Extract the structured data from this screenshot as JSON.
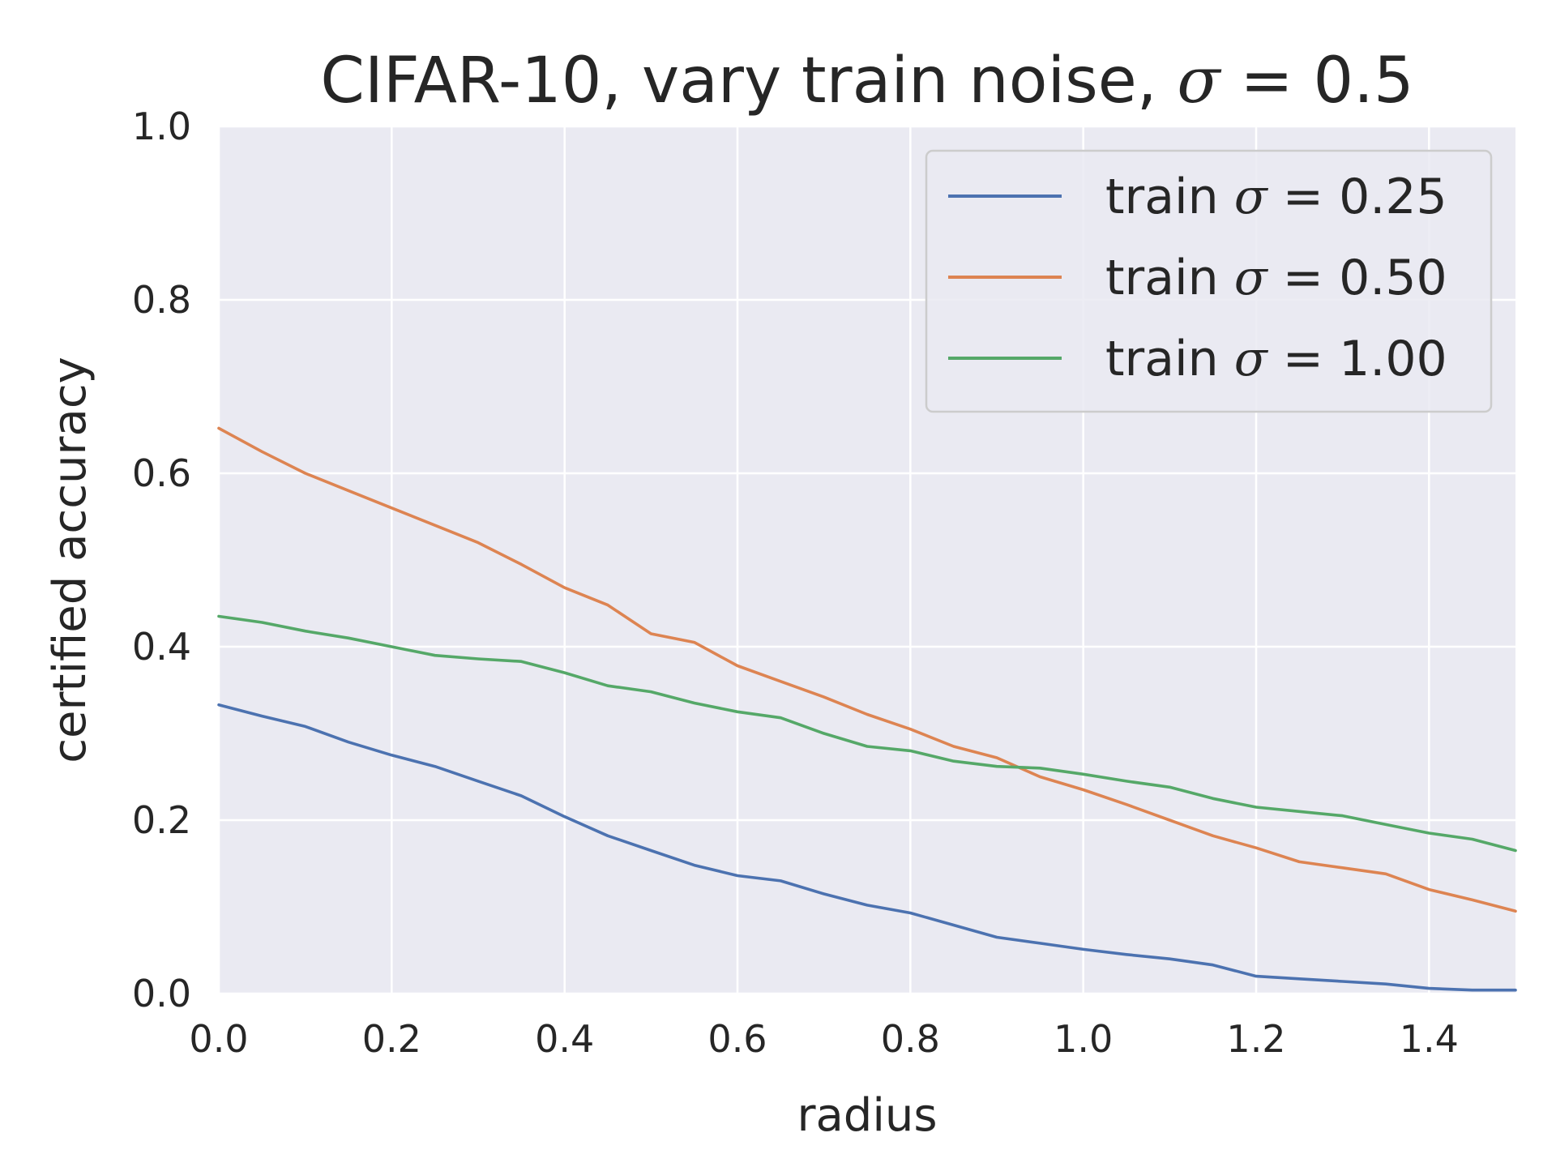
{
  "chart_data": {
    "type": "line",
    "title": {
      "prefix": "CIFAR-10, vary train noise, ",
      "symbol": "σ",
      "suffix": " = 0.5"
    },
    "xlabel": "radius",
    "ylabel": "certified accuracy",
    "xlim": [
      0,
      1.5
    ],
    "ylim": [
      0,
      1.0
    ],
    "xticks": [
      "0.0",
      "0.2",
      "0.4",
      "0.6",
      "0.8",
      "1.0",
      "1.2",
      "1.4"
    ],
    "yticks": [
      "0.0",
      "0.2",
      "0.4",
      "0.6",
      "0.8",
      "1.0"
    ],
    "grid": true,
    "legend_position": "top-right",
    "background": "#eaeaf2",
    "series": [
      {
        "name": "train σ = 0.25",
        "legend_prefix": "train ",
        "legend_symbol": "σ",
        "legend_value": " = 0.25",
        "color": "#4c72b0",
        "x": [
          0.0,
          0.05,
          0.1,
          0.15,
          0.2,
          0.25,
          0.3,
          0.35,
          0.4,
          0.45,
          0.5,
          0.55,
          0.6,
          0.65,
          0.7,
          0.75,
          0.8,
          0.85,
          0.9,
          0.95,
          1.0,
          1.05,
          1.1,
          1.15,
          1.2,
          1.25,
          1.3,
          1.35,
          1.4,
          1.45,
          1.5
        ],
        "y": [
          0.333,
          0.32,
          0.308,
          0.29,
          0.275,
          0.262,
          0.245,
          0.228,
          0.204,
          0.182,
          0.165,
          0.148,
          0.136,
          0.13,
          0.115,
          0.102,
          0.093,
          0.079,
          0.065,
          0.058,
          0.051,
          0.045,
          0.04,
          0.033,
          0.02,
          0.017,
          0.014,
          0.011,
          0.006,
          0.004,
          0.004
        ]
      },
      {
        "name": "train σ = 0.50",
        "legend_prefix": "train ",
        "legend_symbol": "σ",
        "legend_value": " = 0.50",
        "color": "#dd8452",
        "x": [
          0.0,
          0.05,
          0.1,
          0.15,
          0.2,
          0.25,
          0.3,
          0.35,
          0.4,
          0.45,
          0.5,
          0.55,
          0.6,
          0.65,
          0.7,
          0.75,
          0.8,
          0.85,
          0.9,
          0.95,
          1.0,
          1.05,
          1.1,
          1.15,
          1.2,
          1.25,
          1.3,
          1.35,
          1.4,
          1.45,
          1.5
        ],
        "y": [
          0.652,
          0.625,
          0.6,
          0.58,
          0.56,
          0.54,
          0.52,
          0.495,
          0.468,
          0.448,
          0.415,
          0.405,
          0.378,
          0.36,
          0.342,
          0.322,
          0.305,
          0.285,
          0.272,
          0.25,
          0.235,
          0.218,
          0.2,
          0.182,
          0.168,
          0.152,
          0.145,
          0.138,
          0.12,
          0.108,
          0.095
        ]
      },
      {
        "name": "train σ = 1.00",
        "legend_prefix": "train ",
        "legend_symbol": "σ",
        "legend_value": " = 1.00",
        "color": "#55a868",
        "x": [
          0.0,
          0.05,
          0.1,
          0.15,
          0.2,
          0.25,
          0.3,
          0.35,
          0.4,
          0.45,
          0.5,
          0.55,
          0.6,
          0.65,
          0.7,
          0.75,
          0.8,
          0.85,
          0.9,
          0.95,
          1.0,
          1.05,
          1.1,
          1.15,
          1.2,
          1.25,
          1.3,
          1.35,
          1.4,
          1.45,
          1.5
        ],
        "y": [
          0.435,
          0.428,
          0.418,
          0.41,
          0.4,
          0.39,
          0.386,
          0.383,
          0.37,
          0.355,
          0.348,
          0.335,
          0.325,
          0.318,
          0.3,
          0.285,
          0.28,
          0.268,
          0.262,
          0.26,
          0.253,
          0.245,
          0.238,
          0.225,
          0.215,
          0.21,
          0.205,
          0.195,
          0.185,
          0.178,
          0.165
        ]
      }
    ]
  }
}
